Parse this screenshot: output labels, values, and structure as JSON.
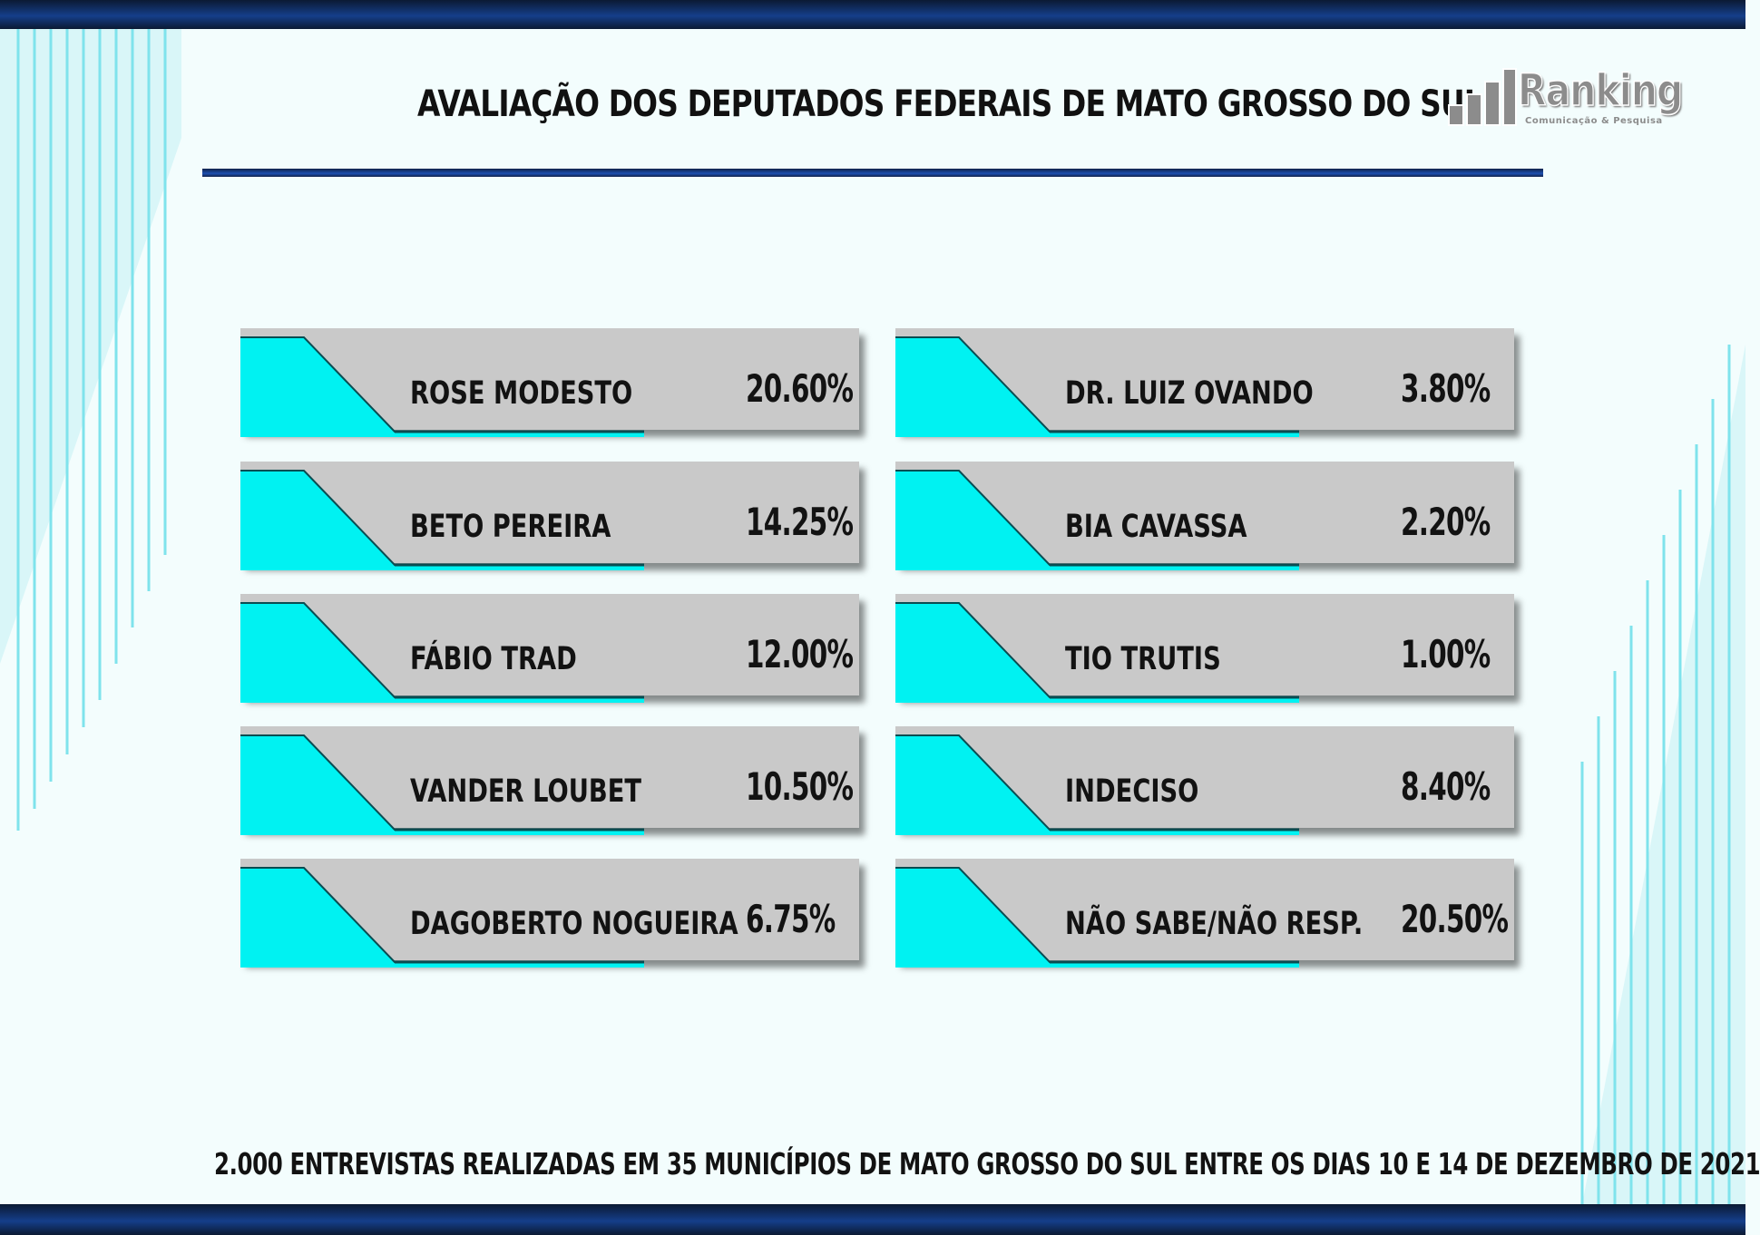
{
  "title": "AVALIAÇÃO DOS DEPUTADOS FEDERAIS DE MATO GROSSO DO SUL",
  "logo": {
    "word": "Ranking",
    "tagline": "Comunicação & Pesquisa",
    "icon": "bar-chart-icon"
  },
  "chart_data": {
    "type": "table",
    "title": "AVALIAÇÃO DOS DEPUTADOS FEDERAIS DE MATO GROSSO DO SUL",
    "unit": "%",
    "categories": [
      "ROSE MODESTO",
      "BETO PEREIRA",
      "FÁBIO TRAD",
      "VANDER LOUBET",
      "DAGOBERTO NOGUEIRA",
      "DR. LUIZ OVANDO",
      "BIA CAVASSA",
      "TIO TRUTIS",
      "INDECISO",
      "NÃO SABE/NÃO RESP."
    ],
    "values": [
      20.6,
      14.25,
      12.0,
      10.5,
      6.75,
      3.8,
      2.2,
      1.0,
      8.4,
      20.5
    ],
    "labels": [
      "20.60%",
      "14.25%",
      "12.00%",
      "10.50%",
      "6.75%",
      "3.80%",
      "2.20%",
      "1.00%",
      "8.40%",
      "20.50%"
    ]
  },
  "footer": "2.000 ENTREVISTAS REALIZADAS EM 35 MUNICÍPIOS DE MATO GROSSO DO SUL ENTRE OS DIAS 10 E 14 DE DEZEMBRO DE 2021",
  "colors": {
    "accent_cyan": "#00f2f2",
    "card_gray": "#c9c9c9",
    "band_blue": "#153e8a",
    "background": "#f3fdfd"
  }
}
